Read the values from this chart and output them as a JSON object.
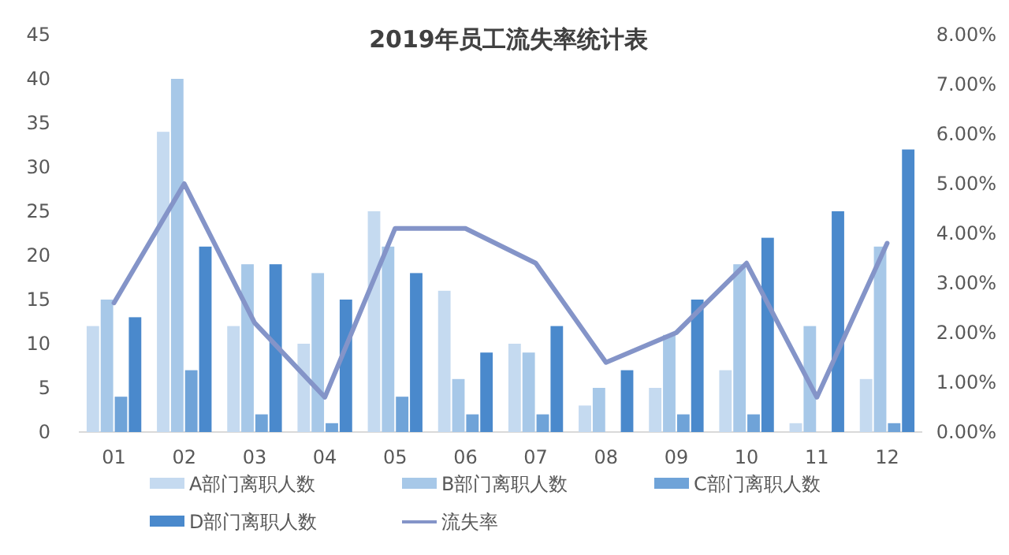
{
  "chart_data": {
    "type": "bar",
    "title": "2019年员工流失率统计表",
    "categories": [
      "01",
      "02",
      "03",
      "04",
      "05",
      "06",
      "07",
      "08",
      "09",
      "10",
      "11",
      "12"
    ],
    "series": [
      {
        "name": "A部门离职人数",
        "color": "#c5daf0",
        "values": [
          12,
          34,
          12,
          10,
          25,
          16,
          10,
          3,
          5,
          7,
          1,
          6
        ]
      },
      {
        "name": "B部门离职人数",
        "color": "#a7c8e8",
        "values": [
          15,
          40,
          19,
          18,
          21,
          6,
          9,
          5,
          11,
          19,
          12,
          21
        ]
      },
      {
        "name": "C部门离职人数",
        "color": "#6fa3d8",
        "values": [
          4,
          7,
          2,
          1,
          4,
          2,
          2,
          0,
          2,
          2,
          0,
          1
        ]
      },
      {
        "name": "D部门离职人数",
        "color": "#4a89cc",
        "values": [
          13,
          21,
          19,
          15,
          18,
          9,
          12,
          7,
          15,
          22,
          25,
          32
        ]
      },
      {
        "name": "流失率",
        "type": "line",
        "axis": "y2",
        "color": "#8494c8",
        "values": [
          2.6,
          5.0,
          2.2,
          0.7,
          4.1,
          4.1,
          3.4,
          1.4,
          2.0,
          3.4,
          0.7,
          3.8
        ]
      }
    ],
    "ylim": [
      0,
      45
    ],
    "yticks": [
      0,
      5,
      10,
      15,
      20,
      25,
      30,
      35,
      40,
      45
    ],
    "y2lim": [
      0,
      8
    ],
    "y2ticks": [
      {
        "value": 0,
        "label": "0.00%"
      },
      {
        "value": 1,
        "label": "1.00%"
      },
      {
        "value": 2,
        "label": "2.00%"
      },
      {
        "value": 3,
        "label": "3.00%"
      },
      {
        "value": 4,
        "label": "4.00%"
      },
      {
        "value": 5,
        "label": "5.00%"
      },
      {
        "value": 6,
        "label": "6.00%"
      },
      {
        "value": 7,
        "label": "7.00%"
      },
      {
        "value": 8,
        "label": "8.00%"
      }
    ],
    "legend": "bottom",
    "grid": false
  }
}
